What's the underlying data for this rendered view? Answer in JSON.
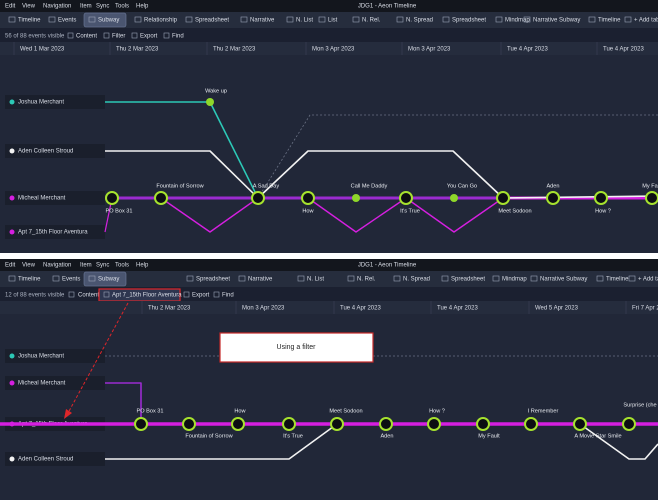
{
  "menu": [
    "Edit",
    "View",
    "Navigation",
    "Item",
    "Sync",
    "Tools",
    "Help"
  ],
  "app_title": "JDG1 - Aeon Timeline",
  "top": {
    "tabs": [
      "Timeline",
      "Events",
      "Subway",
      "Relationship",
      "Spreadsheet",
      "Narrative",
      "N. List",
      "List",
      "N. Rel.",
      "N. Spread",
      "Spreadsheet",
      "Mindmap",
      "Narrative Subway",
      "Timeline",
      "+ Add tab"
    ],
    "status": "56 of 88 events visible",
    "toolbar": [
      "Content",
      "Filter",
      "Export",
      "Find"
    ],
    "dates": [
      "Wed 1 Mar 2023",
      "Thu 2 Mar 2023",
      "Thu 2 Mar 2023",
      "Mon 3 Apr 2023",
      "Mon 3 Apr 2023",
      "Tue 4 Apr 2023",
      "Tue 4 Apr 2023"
    ],
    "rows": [
      "Joshua Merchant",
      "Aden Colleen Stroud",
      "Micheal Merchant",
      "Apt 7_15th Floor Aventura"
    ],
    "events": [
      "Wake up",
      "Fountain of Sorrow",
      "A Sad Day",
      "Call Me Daddy",
      "You Can Go",
      "Aden",
      "My Fa",
      "PO Box 31",
      "How",
      "It's True",
      "Meet Sodoon",
      "How ?"
    ]
  },
  "bottom": {
    "tabs": [
      "Timeline",
      "Events",
      "Subway",
      "Spreadsheet",
      "Narrative",
      "N. List",
      "N. Rel.",
      "N. Spread",
      "Spreadsheet",
      "Mindmap",
      "Narrative Subway",
      "Timeline",
      "+ Add tab"
    ],
    "status": "12 of 88 events visible",
    "toolbar": [
      "Content",
      "Apt 7_15th Floor Aventura",
      "Export",
      "Find"
    ],
    "dates": [
      "Thu 2 Mar 2023",
      "Mon 3 Apr 2023",
      "Tue 4 Apr 2023",
      "Tue 4 Apr 2023",
      "Wed 5 Apr 2023",
      "Fri 7 Apr 2"
    ],
    "rows": [
      "Joshua Merchant",
      "Micheal Merchant",
      "Apt 7_15th Floor Aventura",
      "Aden Colleen Stroud"
    ],
    "events": [
      "PO Box 31",
      "How",
      "Meet Sodoon",
      "How ?",
      "I Remember",
      "Surprise (che",
      "Fountain of Sorrow",
      "It's True",
      "Aden",
      "My Fault",
      "A Movie Star Smile"
    ],
    "annotation": "Using a filter"
  }
}
